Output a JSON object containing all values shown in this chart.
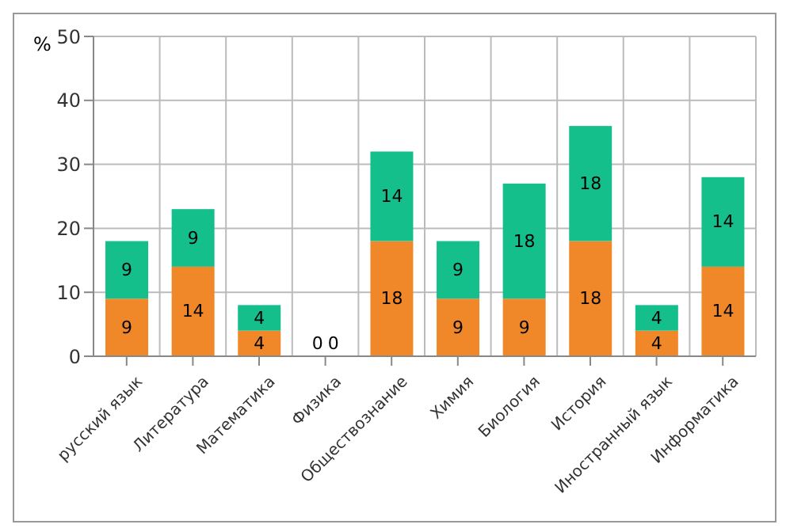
{
  "chart_data": {
    "type": "bar",
    "stacked": true,
    "ylabel": "%",
    "categories": [
      "русский язык",
      "Литература",
      "Математика",
      "Физика",
      "Обществознание",
      "Химия",
      "Биология",
      "История",
      "Иностранный язык",
      "Информатика"
    ],
    "series": [
      {
        "color": "#f0882a",
        "values": [
          9,
          14,
          4,
          0,
          18,
          9,
          9,
          18,
          4,
          14
        ]
      },
      {
        "color": "#14bf8c",
        "values": [
          9,
          9,
          4,
          0,
          14,
          9,
          18,
          18,
          4,
          14
        ]
      }
    ],
    "ylim": [
      0,
      50
    ],
    "yticks": [
      0,
      10,
      20,
      30,
      40,
      50
    ],
    "grid": true,
    "data_labels": true
  }
}
